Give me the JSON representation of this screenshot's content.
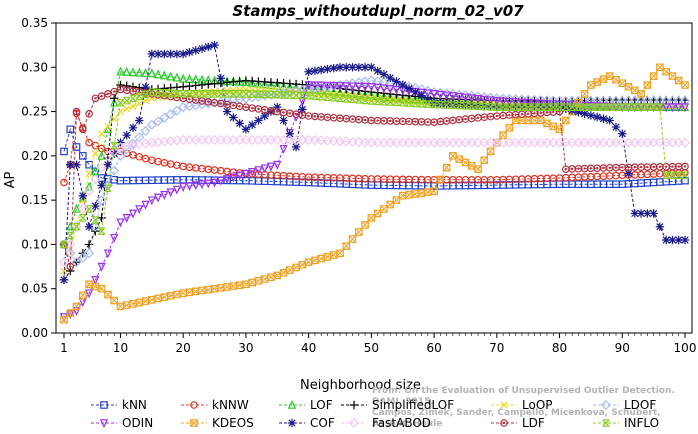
{
  "chart_data": {
    "type": "line",
    "title": "Stamps_withoutdupl_norm_02_v07",
    "xlabel": "Neighborhood size",
    "ylabel": "AP",
    "xlim": [
      0,
      100
    ],
    "ylim": [
      0,
      0.35
    ],
    "x_ticks": [
      1,
      10,
      20,
      30,
      40,
      50,
      60,
      70,
      80,
      90,
      100
    ],
    "y_ticks": [
      0.0,
      0.05,
      0.1,
      0.15,
      0.2,
      0.25,
      0.3,
      0.35
    ],
    "grid": false,
    "legend_position": "bottom",
    "series": [
      {
        "name": "kNN",
        "color": "#1f3fcf",
        "marker": "square",
        "points": [
          [
            1,
            0.205
          ],
          [
            2,
            0.23
          ],
          [
            3,
            0.21
          ],
          [
            5,
            0.19
          ],
          [
            7,
            0.175
          ],
          [
            10,
            0.172
          ],
          [
            20,
            0.173
          ],
          [
            30,
            0.172
          ],
          [
            40,
            0.17
          ],
          [
            50,
            0.167
          ],
          [
            60,
            0.166
          ],
          [
            70,
            0.167
          ],
          [
            80,
            0.168
          ],
          [
            90,
            0.168
          ],
          [
            100,
            0.172
          ]
        ]
      },
      {
        "name": "kNNW",
        "color": "#e03020",
        "marker": "circle",
        "points": [
          [
            1,
            0.17
          ],
          [
            2,
            0.19
          ],
          [
            3,
            0.248
          ],
          [
            5,
            0.215
          ],
          [
            8,
            0.205
          ],
          [
            10,
            0.205
          ],
          [
            15,
            0.195
          ],
          [
            20,
            0.188
          ],
          [
            30,
            0.18
          ],
          [
            40,
            0.176
          ],
          [
            50,
            0.174
          ],
          [
            60,
            0.173
          ],
          [
            70,
            0.173
          ],
          [
            80,
            0.175
          ],
          [
            90,
            0.178
          ],
          [
            100,
            0.181
          ]
        ]
      },
      {
        "name": "LOF",
        "color": "#22cc22",
        "marker": "triangle-up",
        "points": [
          [
            1,
            0.1
          ],
          [
            3,
            0.14
          ],
          [
            5,
            0.165
          ],
          [
            7,
            0.2
          ],
          [
            9,
            0.26
          ],
          [
            10,
            0.295
          ],
          [
            15,
            0.293
          ],
          [
            20,
            0.287
          ],
          [
            30,
            0.283
          ],
          [
            40,
            0.275
          ],
          [
            50,
            0.268
          ],
          [
            60,
            0.262
          ],
          [
            70,
            0.258
          ],
          [
            80,
            0.257
          ],
          [
            90,
            0.255
          ],
          [
            100,
            0.255
          ]
        ]
      },
      {
        "name": "SimplifiedLOF",
        "color": "#000000",
        "marker": "plus",
        "points": [
          [
            1,
            0.06
          ],
          [
            3,
            0.08
          ],
          [
            5,
            0.1
          ],
          [
            7,
            0.13
          ],
          [
            9,
            0.265
          ],
          [
            10,
            0.28
          ],
          [
            15,
            0.275
          ],
          [
            20,
            0.278
          ],
          [
            30,
            0.285
          ],
          [
            40,
            0.28
          ],
          [
            50,
            0.272
          ],
          [
            60,
            0.265
          ],
          [
            70,
            0.262
          ],
          [
            80,
            0.262
          ],
          [
            90,
            0.263
          ],
          [
            100,
            0.263
          ]
        ]
      },
      {
        "name": "LoOP",
        "color": "#e8d820",
        "marker": "x",
        "points": [
          [
            1,
            0.07
          ],
          [
            3,
            0.12
          ],
          [
            5,
            0.18
          ],
          [
            7,
            0.225
          ],
          [
            10,
            0.25
          ],
          [
            15,
            0.265
          ],
          [
            20,
            0.27
          ],
          [
            30,
            0.275
          ],
          [
            40,
            0.272
          ],
          [
            50,
            0.265
          ],
          [
            60,
            0.26
          ],
          [
            70,
            0.258
          ],
          [
            80,
            0.255
          ],
          [
            90,
            0.255
          ],
          [
            100,
            0.257
          ]
        ]
      },
      {
        "name": "LDOF",
        "color": "#aabbee",
        "marker": "diamond",
        "points": [
          [
            1,
            0.1
          ],
          [
            3,
            0.08
          ],
          [
            5,
            0.09
          ],
          [
            7,
            0.15
          ],
          [
            10,
            0.2
          ],
          [
            15,
            0.235
          ],
          [
            20,
            0.255
          ],
          [
            30,
            0.265
          ],
          [
            40,
            0.275
          ],
          [
            50,
            0.285
          ],
          [
            55,
            0.28
          ],
          [
            60,
            0.272
          ],
          [
            70,
            0.265
          ],
          [
            80,
            0.262
          ],
          [
            90,
            0.262
          ],
          [
            100,
            0.262
          ]
        ]
      },
      {
        "name": "ODIN",
        "color": "#9933ee",
        "marker": "triangle-down",
        "points": [
          [
            1,
            0.018
          ],
          [
            3,
            0.025
          ],
          [
            5,
            0.045
          ],
          [
            8,
            0.09
          ],
          [
            10,
            0.125
          ],
          [
            15,
            0.15
          ],
          [
            20,
            0.165
          ],
          [
            25,
            0.17
          ],
          [
            30,
            0.18
          ],
          [
            35,
            0.19
          ],
          [
            40,
            0.28
          ],
          [
            50,
            0.278
          ],
          [
            60,
            0.27
          ],
          [
            70,
            0.262
          ],
          [
            80,
            0.258
          ],
          [
            90,
            0.255
          ],
          [
            100,
            0.255
          ]
        ]
      },
      {
        "name": "KDEOS",
        "color": "#f0a020",
        "marker": "square-x",
        "points": [
          [
            1,
            0.015
          ],
          [
            3,
            0.03
          ],
          [
            5,
            0.055
          ],
          [
            7,
            0.05
          ],
          [
            10,
            0.03
          ],
          [
            20,
            0.045
          ],
          [
            30,
            0.055
          ],
          [
            35,
            0.065
          ],
          [
            40,
            0.08
          ],
          [
            45,
            0.09
          ],
          [
            50,
            0.13
          ],
          [
            55,
            0.155
          ],
          [
            60,
            0.16
          ],
          [
            63,
            0.2
          ],
          [
            67,
            0.185
          ],
          [
            70,
            0.215
          ],
          [
            73,
            0.24
          ],
          [
            77,
            0.24
          ],
          [
            80,
            0.23
          ],
          [
            85,
            0.28
          ],
          [
            88,
            0.29
          ],
          [
            93,
            0.27
          ],
          [
            96,
            0.3
          ],
          [
            100,
            0.28
          ]
        ]
      },
      {
        "name": "COF",
        "color": "#1a1a8a",
        "marker": "star",
        "points": [
          [
            1,
            0.06
          ],
          [
            2,
            0.19
          ],
          [
            3,
            0.19
          ],
          [
            5,
            0.12
          ],
          [
            8,
            0.19
          ],
          [
            10,
            0.215
          ],
          [
            13,
            0.24
          ],
          [
            15,
            0.315
          ],
          [
            20,
            0.315
          ],
          [
            25,
            0.325
          ],
          [
            27,
            0.25
          ],
          [
            30,
            0.23
          ],
          [
            35,
            0.255
          ],
          [
            38,
            0.21
          ],
          [
            40,
            0.295
          ],
          [
            45,
            0.3
          ],
          [
            50,
            0.3
          ],
          [
            55,
            0.28
          ],
          [
            60,
            0.26
          ],
          [
            70,
            0.255
          ],
          [
            80,
            0.255
          ],
          [
            88,
            0.24
          ],
          [
            90,
            0.225
          ],
          [
            92,
            0.135
          ],
          [
            95,
            0.135
          ],
          [
            97,
            0.105
          ],
          [
            100,
            0.105
          ]
        ]
      },
      {
        "name": "FastABOD",
        "color": "#f2c8f2",
        "marker": "diamond-open",
        "points": [
          [
            1,
            0.08
          ],
          [
            3,
            0.12
          ],
          [
            5,
            0.16
          ],
          [
            8,
            0.2
          ],
          [
            10,
            0.21
          ],
          [
            15,
            0.215
          ],
          [
            20,
            0.218
          ],
          [
            30,
            0.218
          ],
          [
            40,
            0.218
          ],
          [
            50,
            0.215
          ],
          [
            60,
            0.215
          ],
          [
            70,
            0.215
          ],
          [
            80,
            0.215
          ],
          [
            90,
            0.215
          ],
          [
            100,
            0.215
          ]
        ]
      },
      {
        "name": "LDF",
        "color": "#b03040",
        "marker": "circle-dot",
        "points": [
          [
            1,
            0.1
          ],
          [
            2,
            0.075
          ],
          [
            3,
            0.25
          ],
          [
            4,
            0.23
          ],
          [
            6,
            0.265
          ],
          [
            10,
            0.275
          ],
          [
            15,
            0.27
          ],
          [
            20,
            0.265
          ],
          [
            30,
            0.255
          ],
          [
            40,
            0.245
          ],
          [
            50,
            0.24
          ],
          [
            60,
            0.238
          ],
          [
            70,
            0.245
          ],
          [
            80,
            0.25
          ],
          [
            81,
            0.185
          ],
          [
            90,
            0.187
          ],
          [
            100,
            0.188
          ]
        ]
      },
      {
        "name": "INFLO",
        "color": "#88cc22",
        "marker": "box-x",
        "points": [
          [
            1,
            0.1
          ],
          [
            3,
            0.12
          ],
          [
            5,
            0.14
          ],
          [
            7,
            0.115
          ],
          [
            10,
            0.26
          ],
          [
            15,
            0.272
          ],
          [
            20,
            0.27
          ],
          [
            30,
            0.27
          ],
          [
            40,
            0.268
          ],
          [
            50,
            0.262
          ],
          [
            60,
            0.258
          ],
          [
            70,
            0.255
          ],
          [
            80,
            0.255
          ],
          [
            90,
            0.255
          ],
          [
            96,
            0.255
          ],
          [
            97,
            0.178
          ],
          [
            100,
            0.178
          ]
        ]
      }
    ],
    "watermark": [
      "From: On the Evaluation of Unsupervised Outlier Detection. DAMI, 2015.",
      "Campos, Zimek, Sander, Campello, Micenkova, Schubert, Assent, Houle"
    ]
  }
}
